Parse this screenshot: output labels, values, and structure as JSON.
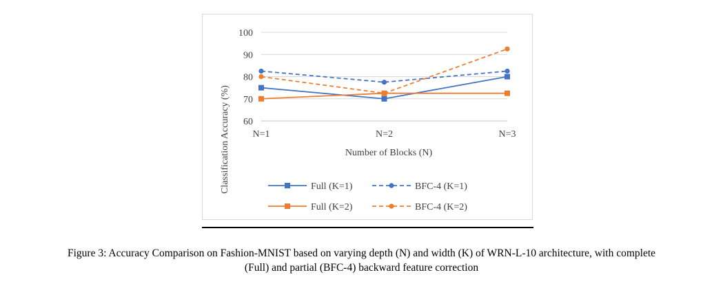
{
  "chart_data": {
    "type": "line",
    "categories": [
      "N=1",
      "N=2",
      "N=3"
    ],
    "xlabel": "Number of Blocks (N)",
    "ylabel": "Classification Accuracy (%)",
    "ylim": [
      60,
      100
    ],
    "yticks": [
      "60",
      "70",
      "80",
      "90",
      "100"
    ],
    "grid": true,
    "legend_position": "bottom",
    "series": [
      {
        "name": "Full (K=1)",
        "values": [
          75,
          70,
          80
        ],
        "color": "#4472c4",
        "dashed": false,
        "marker": "square"
      },
      {
        "name": "Full (K=2)",
        "values": [
          70,
          72.5,
          72.5
        ],
        "color": "#ed7d31",
        "dashed": false,
        "marker": "square"
      },
      {
        "name": "BFC-4 (K=1)",
        "values": [
          82.5,
          77.5,
          82.5
        ],
        "color": "#4472c4",
        "dashed": true,
        "marker": "circle"
      },
      {
        "name": "BFC-4 (K=2)",
        "values": [
          80,
          72.5,
          92.5
        ],
        "color": "#ed7d31",
        "dashed": true,
        "marker": "circle"
      }
    ]
  },
  "caption": {
    "line1": "Figure 3: Accuracy Comparison on Fashion-MNIST based on varying depth (N) and width (K) of WRN-L-10 architecture, with complete",
    "line2": "(Full) and partial (BFC-4) backward feature correction"
  }
}
